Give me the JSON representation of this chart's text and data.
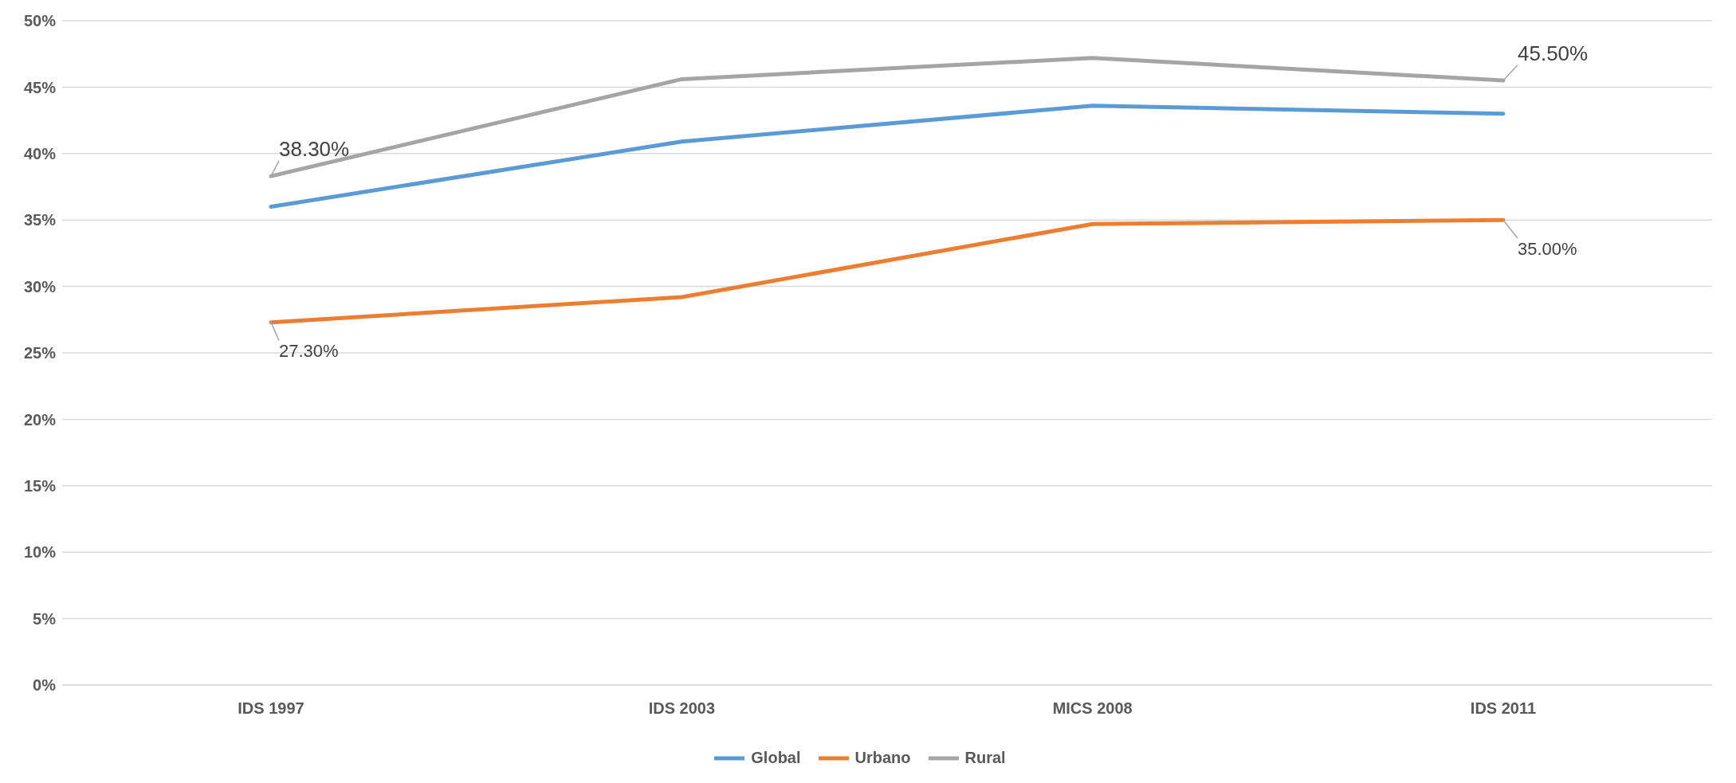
{
  "chart_data": {
    "type": "line",
    "categories": [
      "IDS 1997",
      "IDS 2003",
      "MICS 2008",
      "IDS 2011"
    ],
    "series": [
      {
        "name": "Global",
        "color": "#5b9bd5",
        "values": [
          36.0,
          40.9,
          43.6,
          43.0
        ]
      },
      {
        "name": "Urbano",
        "color": "#ed7d31",
        "values": [
          27.3,
          29.2,
          34.7,
          35.0
        ],
        "value_labels": [
          "27.30%",
          null,
          null,
          "35.00%"
        ]
      },
      {
        "name": "Rural",
        "color": "#a5a5a5",
        "values": [
          38.3,
          45.6,
          47.2,
          45.5
        ],
        "value_labels": [
          "38.30%",
          null,
          null,
          "45.50%"
        ]
      }
    ],
    "ylim": [
      0,
      50
    ],
    "yticks": [
      {
        "value": 0,
        "label": "0%"
      },
      {
        "value": 5,
        "label": "5%"
      },
      {
        "value": 10,
        "label": "10%"
      },
      {
        "value": 15,
        "label": "15%"
      },
      {
        "value": 20,
        "label": "20%"
      },
      {
        "value": 25,
        "label": "25%"
      },
      {
        "value": 30,
        "label": "30%"
      },
      {
        "value": 35,
        "label": "35%"
      },
      {
        "value": 40,
        "label": "40%"
      },
      {
        "value": 45,
        "label": "45%"
      },
      {
        "value": 50,
        "label": "50%"
      }
    ],
    "grid": "y",
    "legend": "bottom",
    "marker": "none",
    "line_style": "solid"
  }
}
